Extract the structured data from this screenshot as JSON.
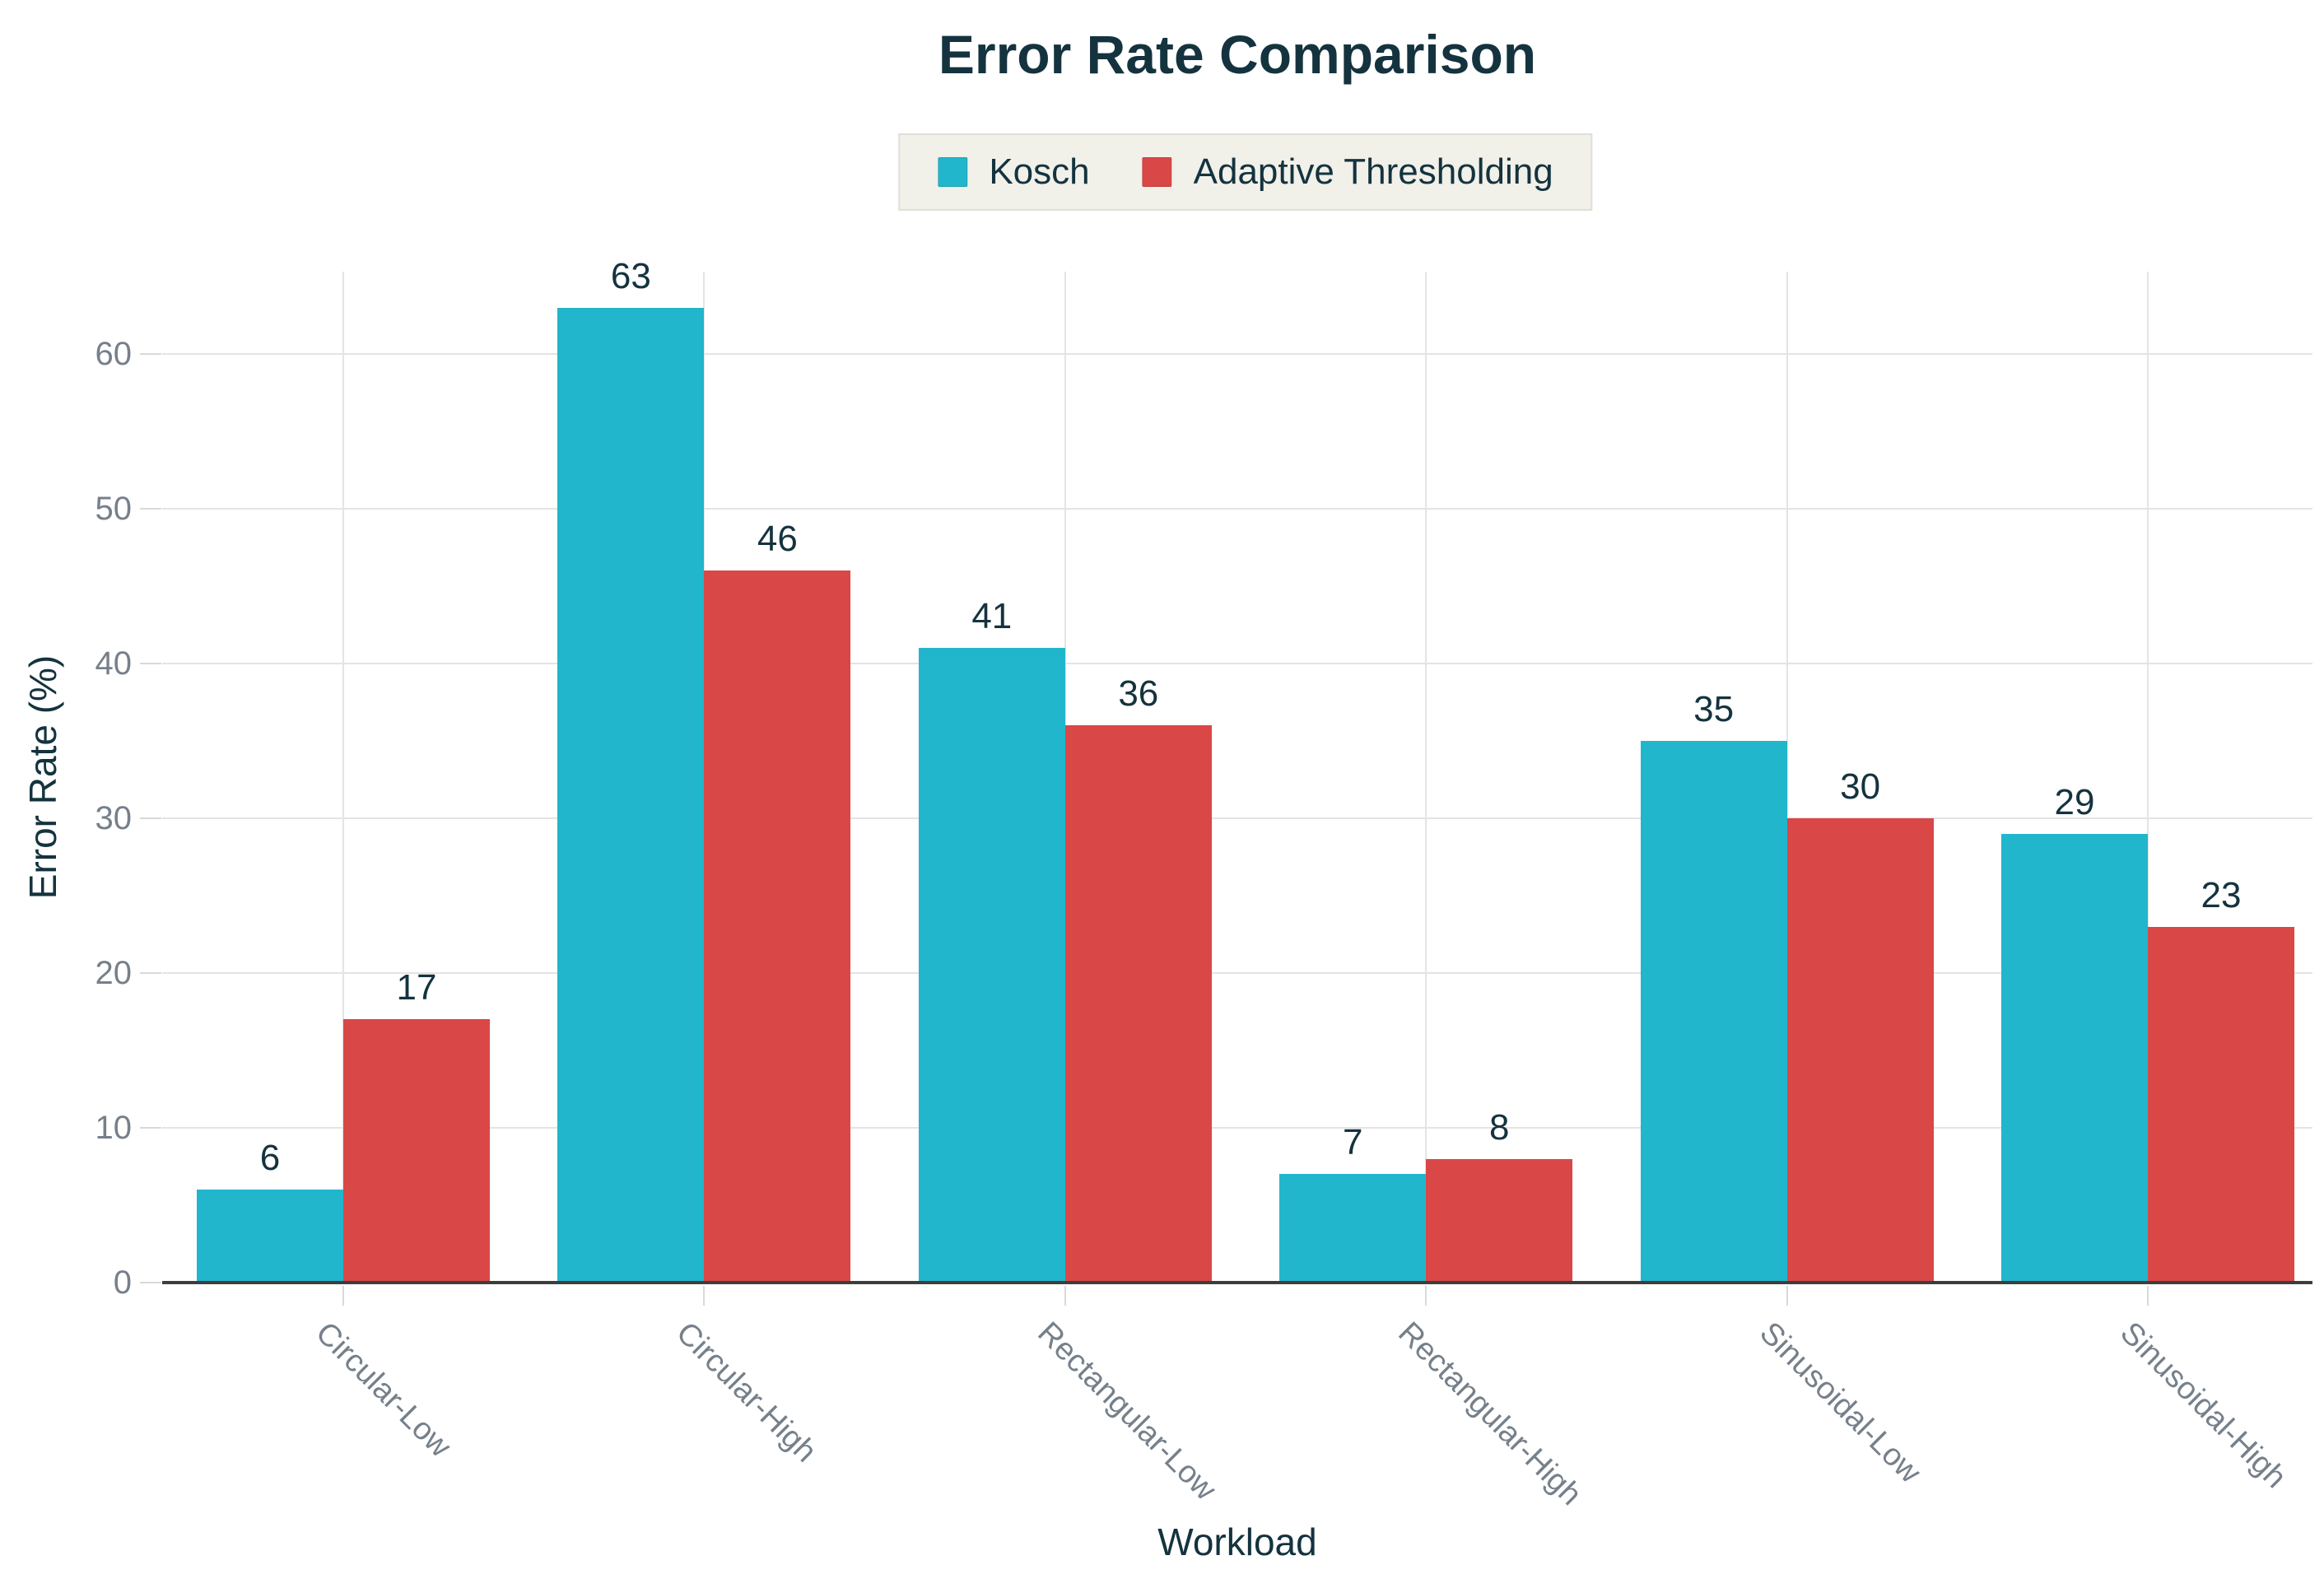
{
  "chart_data": {
    "type": "bar",
    "title": "Error Rate Comparison",
    "categories": [
      "Circular-Low",
      "Circular-High",
      "Rectangular-Low",
      "Rectangular-High",
      "Sinusoidal-Low",
      "Sinusoidal-High"
    ],
    "series": [
      {
        "name": "Kosch",
        "color": "#21b6cb",
        "values": [
          6,
          63,
          41,
          7,
          35,
          29
        ]
      },
      {
        "name": "Adaptive Thresholding",
        "color": "#d94747",
        "values": [
          17,
          46,
          36,
          8,
          30,
          23
        ]
      }
    ],
    "xlabel": "Workload",
    "ylabel": "Error Rate (%)",
    "ylim": [
      0,
      65
    ],
    "yticks": [
      0,
      10,
      20,
      30,
      40,
      50,
      60
    ],
    "grid": true,
    "legend_position": "top-center",
    "value_labels": true
  },
  "colors": {
    "background": "#ffffff",
    "dark_text": "#14333e",
    "muted_text": "#76808a",
    "gridline": "#e4e4e2",
    "axis_line": "#3d3d3d",
    "legend_bg": "#f1f0e9",
    "legend_border": "#e0dfd7",
    "kosch_bar": "#21b6cb",
    "adaptive_thresholding_bar": "#d94747"
  }
}
